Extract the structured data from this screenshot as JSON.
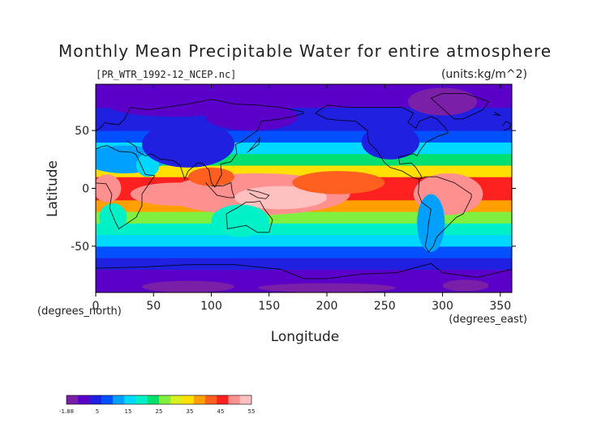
{
  "chart_data": {
    "type": "heatmap",
    "title": "Monthly Mean Precipitable Water for entire atmosphere",
    "file_label": "[PR_WTR_1992-12_NCEP.nc]",
    "units_label": "(units:kg/m^2)",
    "xlabel": "Longitude",
    "ylabel": "Latitude",
    "x_unit": "(degrees_east)",
    "y_unit": "(degrees_north)",
    "xlim": [
      0,
      360
    ],
    "ylim": [
      -90,
      90
    ],
    "x_ticks": [
      0,
      50,
      100,
      150,
      200,
      250,
      300,
      350
    ],
    "y_ticks": [
      50,
      0,
      -50
    ],
    "colorbar": {
      "tick_labels": [
        "-1.88",
        "5",
        "15",
        "25",
        "35",
        "45",
        "55"
      ],
      "range": [
        -1.88,
        55
      ],
      "colors": [
        "#7a1fa8",
        "#5a00c8",
        "#2020e0",
        "#0050ff",
        "#00a0ff",
        "#00d8ff",
        "#00f0c8",
        "#00e070",
        "#80f040",
        "#d8f020",
        "#ffe000",
        "#ffa000",
        "#ff6020",
        "#ff2020",
        "#ff9090",
        "#ffc0c0"
      ]
    },
    "zonal_mean_profile": {
      "latitudes": [
        -85,
        -75,
        -65,
        -55,
        -45,
        -35,
        -25,
        -15,
        -5,
        5,
        15,
        25,
        35,
        45,
        55,
        65,
        75,
        85
      ],
      "values": [
        2,
        4,
        7,
        11,
        16,
        22,
        30,
        38,
        45,
        45,
        35,
        26,
        18,
        12,
        8,
        6,
        4,
        3
      ]
    }
  }
}
